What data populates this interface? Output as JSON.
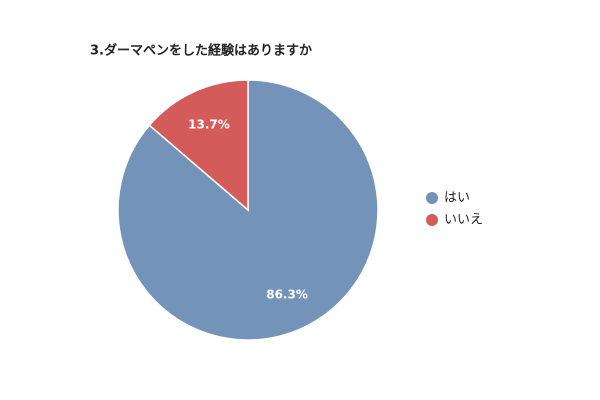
{
  "chart_data": {
    "type": "pie",
    "title": "3.ダーマペンをした経験はありますか",
    "categories": [
      "はい",
      "いいえ"
    ],
    "values": [
      86.3,
      13.7
    ],
    "value_labels": [
      "86.3%",
      "13.7%"
    ],
    "colors": [
      "#7393b9",
      "#d35c5a"
    ],
    "legend": "right"
  }
}
